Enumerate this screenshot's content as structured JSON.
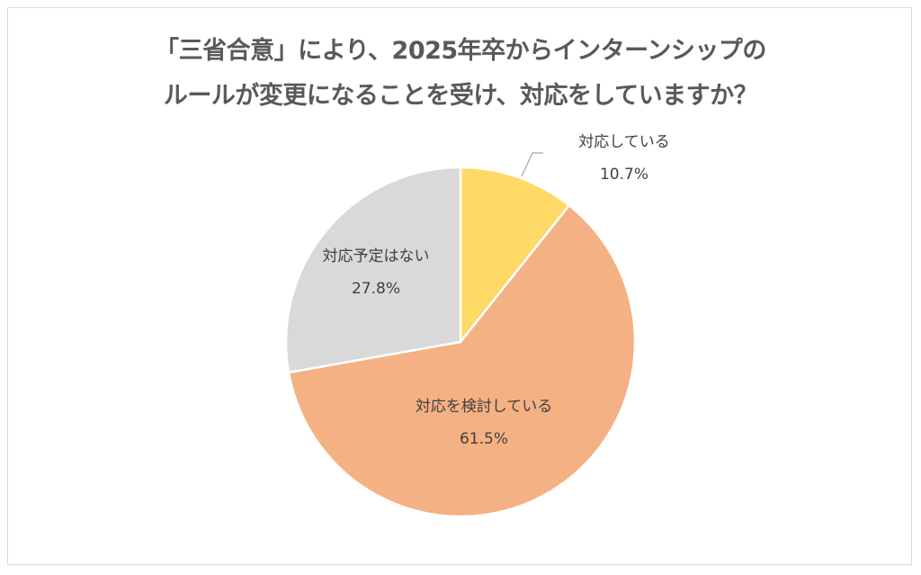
{
  "chart_data": {
    "type": "pie",
    "title": [
      "「三省合意」により、2025年卒からインターンシップの",
      "ルールが変更になることを受け、対応をしていますか？"
    ],
    "slices": [
      {
        "label": "対応している",
        "value": 10.7,
        "display": "10.7%",
        "color": "#FFD966"
      },
      {
        "label": "対応を検討している",
        "value": 61.5,
        "display": "61.5%",
        "color": "#F4B183"
      },
      {
        "label": "対応予定はない",
        "value": 27.8,
        "display": "27.8%",
        "color": "#D9D9D9"
      }
    ],
    "start": "top",
    "direction": "clockwise"
  }
}
